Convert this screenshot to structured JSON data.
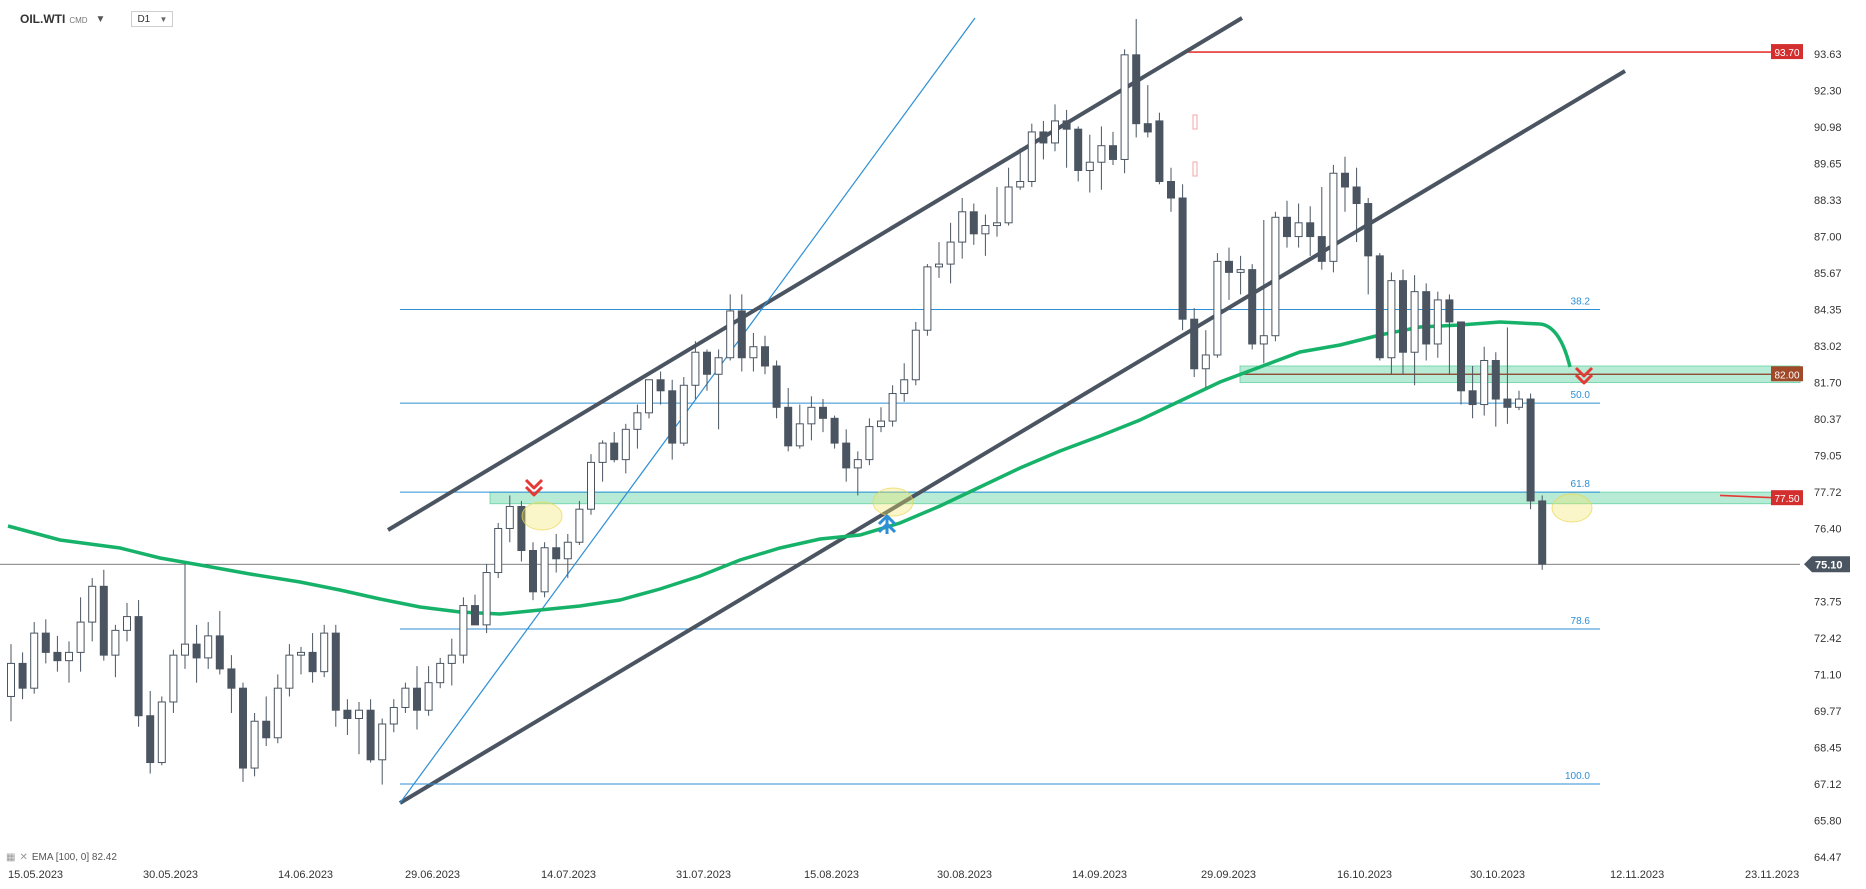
{
  "header": {
    "symbol": "OIL.WTI",
    "symbol_suffix": "CMD",
    "timeframe": "D1"
  },
  "legend": {
    "text": "EMA [100, 0] 82.42"
  },
  "colors": {
    "candle_up_fill": "#ffffff",
    "candle_down_fill": "#4a5561",
    "candle_outline": "#4a5561",
    "ema": "#17b26a",
    "channel": "#4a5561",
    "fib": "#2d8fd5",
    "zone": "#62d2a2",
    "resistance": "#e53935",
    "arrow_down": "#e53935",
    "arrow_up": "#2d8fd5",
    "current_price_tag": "#4a5561",
    "price_tag_red": "#d32f2f",
    "price_tag_brown": "#a14a2a"
  },
  "chart_data": {
    "type": "candlestick",
    "title": "",
    "ylim": [
      64.47,
      94.95
    ],
    "y_ticks": [
      "93.63",
      "92.30",
      "90.98",
      "89.65",
      "88.33",
      "87.00",
      "85.67",
      "84.35",
      "83.02",
      "81.70",
      "80.37",
      "79.05",
      "77.72",
      "76.40",
      "75.10",
      "73.75",
      "72.42",
      "71.10",
      "69.77",
      "68.45",
      "67.12",
      "65.80",
      "64.47"
    ],
    "x_labels": [
      "15.05.2023",
      "30.05.2023",
      "14.06.2023",
      "29.06.2023",
      "14.07.2023",
      "31.07.2023",
      "15.08.2023",
      "30.08.2023",
      "14.09.2023",
      "29.09.2023",
      "16.10.2023",
      "30.10.2023",
      "12.11.2023",
      "23.11.2023"
    ],
    "current_price": "75.10",
    "price_tags": [
      {
        "label": "93.70",
        "value": 93.7,
        "kind": "red"
      },
      {
        "label": "82.00",
        "value": 82.0,
        "kind": "brown"
      },
      {
        "label": "77.50",
        "value": 77.5,
        "kind": "red"
      }
    ],
    "fib_levels": [
      {
        "label": "38.2",
        "value": 84.35
      },
      {
        "label": "50.0",
        "value": 80.95
      },
      {
        "label": "61.8",
        "value": 77.72
      },
      {
        "label": "78.6",
        "value": 72.75
      },
      {
        "label": "100.0",
        "value": 67.12
      }
    ],
    "ema_label": "EMA [100, 0] 82.42",
    "candles": [
      {
        "date": "15.05.2023",
        "o": 70.3,
        "h": 72.2,
        "l": 69.4,
        "c": 71.5
      },
      {
        "date": "16.05.2023",
        "o": 71.5,
        "h": 71.9,
        "l": 70.2,
        "c": 70.6
      },
      {
        "date": "17.05.2023",
        "o": 70.6,
        "h": 73.0,
        "l": 70.4,
        "c": 72.6
      },
      {
        "date": "18.05.2023",
        "o": 72.6,
        "h": 73.1,
        "l": 71.5,
        "c": 71.9
      },
      {
        "date": "19.05.2023",
        "o": 71.9,
        "h": 72.5,
        "l": 71.2,
        "c": 71.6
      },
      {
        "date": "22.05.2023",
        "o": 71.6,
        "h": 72.3,
        "l": 70.8,
        "c": 71.9
      },
      {
        "date": "23.05.2023",
        "o": 71.9,
        "h": 73.9,
        "l": 71.2,
        "c": 73.0
      },
      {
        "date": "24.05.2023",
        "o": 73.0,
        "h": 74.6,
        "l": 72.3,
        "c": 74.3
      },
      {
        "date": "25.05.2023",
        "o": 74.3,
        "h": 74.9,
        "l": 71.6,
        "c": 71.8
      },
      {
        "date": "26.05.2023",
        "o": 71.8,
        "h": 72.9,
        "l": 71.0,
        "c": 72.7
      },
      {
        "date": "29.05.2023",
        "o": 72.7,
        "h": 73.7,
        "l": 72.3,
        "c": 73.2
      },
      {
        "date": "30.05.2023",
        "o": 73.2,
        "h": 73.8,
        "l": 69.2,
        "c": 69.6
      },
      {
        "date": "31.05.2023",
        "o": 69.6,
        "h": 70.5,
        "l": 67.5,
        "c": 67.9
      },
      {
        "date": "01.06.2023",
        "o": 67.9,
        "h": 70.3,
        "l": 67.8,
        "c": 70.1
      },
      {
        "date": "02.06.2023",
        "o": 70.1,
        "h": 72.0,
        "l": 69.7,
        "c": 71.8
      },
      {
        "date": "05.06.2023",
        "o": 71.8,
        "h": 75.1,
        "l": 71.3,
        "c": 72.2
      },
      {
        "date": "06.06.2023",
        "o": 72.2,
        "h": 72.9,
        "l": 70.8,
        "c": 71.7
      },
      {
        "date": "07.06.2023",
        "o": 71.7,
        "h": 73.0,
        "l": 71.3,
        "c": 72.5
      },
      {
        "date": "08.06.2023",
        "o": 72.5,
        "h": 73.4,
        "l": 71.1,
        "c": 71.3
      },
      {
        "date": "09.06.2023",
        "o": 71.3,
        "h": 71.8,
        "l": 69.7,
        "c": 70.6
      },
      {
        "date": "12.06.2023",
        "o": 70.6,
        "h": 70.8,
        "l": 67.2,
        "c": 67.7
      },
      {
        "date": "13.06.2023",
        "o": 67.7,
        "h": 69.7,
        "l": 67.4,
        "c": 69.4
      },
      {
        "date": "14.06.2023",
        "o": 69.4,
        "h": 70.3,
        "l": 68.5,
        "c": 68.8
      },
      {
        "date": "15.06.2023",
        "o": 68.8,
        "h": 71.1,
        "l": 68.6,
        "c": 70.6
      },
      {
        "date": "16.06.2023",
        "o": 70.6,
        "h": 72.2,
        "l": 70.3,
        "c": 71.8
      },
      {
        "date": "19.06.2023",
        "o": 71.8,
        "h": 72.1,
        "l": 71.1,
        "c": 71.9
      },
      {
        "date": "20.06.2023",
        "o": 71.9,
        "h": 72.6,
        "l": 70.8,
        "c": 71.2
      },
      {
        "date": "21.06.2023",
        "o": 71.2,
        "h": 72.9,
        "l": 71.0,
        "c": 72.6
      },
      {
        "date": "22.06.2023",
        "o": 72.6,
        "h": 72.9,
        "l": 69.2,
        "c": 69.8
      },
      {
        "date": "23.06.2023",
        "o": 69.8,
        "h": 70.2,
        "l": 68.9,
        "c": 69.5
      },
      {
        "date": "26.06.2023",
        "o": 69.5,
        "h": 70.1,
        "l": 68.2,
        "c": 69.8
      },
      {
        "date": "27.06.2023",
        "o": 69.8,
        "h": 70.2,
        "l": 67.9,
        "c": 68.0
      },
      {
        "date": "28.06.2023",
        "o": 68.0,
        "h": 69.5,
        "l": 67.1,
        "c": 69.3
      },
      {
        "date": "29.06.2023",
        "o": 69.3,
        "h": 70.2,
        "l": 69.0,
        "c": 69.9
      },
      {
        "date": "30.06.2023",
        "o": 69.9,
        "h": 70.8,
        "l": 69.7,
        "c": 70.6
      },
      {
        "date": "03.07.2023",
        "o": 70.6,
        "h": 71.4,
        "l": 69.1,
        "c": 69.8
      },
      {
        "date": "04.07.2023",
        "o": 69.8,
        "h": 71.4,
        "l": 69.6,
        "c": 70.8
      },
      {
        "date": "05.07.2023",
        "o": 70.8,
        "h": 71.7,
        "l": 70.6,
        "c": 71.5
      },
      {
        "date": "06.07.2023",
        "o": 71.5,
        "h": 72.4,
        "l": 70.7,
        "c": 71.8
      },
      {
        "date": "07.07.2023",
        "o": 71.8,
        "h": 73.9,
        "l": 71.5,
        "c": 73.6
      },
      {
        "date": "10.07.2023",
        "o": 73.6,
        "h": 74.0,
        "l": 72.9,
        "c": 72.9
      },
      {
        "date": "11.07.2023",
        "o": 72.9,
        "h": 75.1,
        "l": 72.6,
        "c": 74.8
      },
      {
        "date": "12.07.2023",
        "o": 74.8,
        "h": 76.6,
        "l": 74.6,
        "c": 76.4
      },
      {
        "date": "13.07.2023",
        "o": 76.4,
        "h": 77.6,
        "l": 75.9,
        "c": 77.2
      },
      {
        "date": "14.07.2023",
        "o": 77.2,
        "h": 77.4,
        "l": 75.2,
        "c": 75.6
      },
      {
        "date": "17.07.2023",
        "o": 75.6,
        "h": 75.9,
        "l": 73.8,
        "c": 74.1
      },
      {
        "date": "18.07.2023",
        "o": 74.1,
        "h": 75.9,
        "l": 73.9,
        "c": 75.7
      },
      {
        "date": "19.07.2023",
        "o": 75.7,
        "h": 76.2,
        "l": 74.8,
        "c": 75.3
      },
      {
        "date": "20.07.2023",
        "o": 75.3,
        "h": 76.2,
        "l": 74.6,
        "c": 75.9
      },
      {
        "date": "21.07.2023",
        "o": 75.9,
        "h": 77.4,
        "l": 75.8,
        "c": 77.1
      },
      {
        "date": "24.07.2023",
        "o": 77.1,
        "h": 79.1,
        "l": 76.9,
        "c": 78.8
      },
      {
        "date": "25.07.2023",
        "o": 78.8,
        "h": 79.6,
        "l": 78.1,
        "c": 79.5
      },
      {
        "date": "26.07.2023",
        "o": 79.5,
        "h": 79.9,
        "l": 78.8,
        "c": 78.9
      },
      {
        "date": "27.07.2023",
        "o": 78.9,
        "h": 80.2,
        "l": 78.4,
        "c": 80.0
      },
      {
        "date": "28.07.2023",
        "o": 80.0,
        "h": 80.9,
        "l": 79.3,
        "c": 80.6
      },
      {
        "date": "31.07.2023",
        "o": 80.6,
        "h": 81.8,
        "l": 80.4,
        "c": 81.8
      },
      {
        "date": "01.08.2023",
        "o": 81.8,
        "h": 82.1,
        "l": 80.9,
        "c": 81.4
      },
      {
        "date": "02.08.2023",
        "o": 81.4,
        "h": 81.8,
        "l": 78.9,
        "c": 79.5
      },
      {
        "date": "03.08.2023",
        "o": 79.5,
        "h": 81.9,
        "l": 79.4,
        "c": 81.6
      },
      {
        "date": "04.08.2023",
        "o": 81.6,
        "h": 83.2,
        "l": 81.1,
        "c": 82.8
      },
      {
        "date": "07.08.2023",
        "o": 82.8,
        "h": 82.9,
        "l": 81.4,
        "c": 82.0
      },
      {
        "date": "08.08.2023",
        "o": 82.0,
        "h": 82.9,
        "l": 80.0,
        "c": 82.6
      },
      {
        "date": "09.08.2023",
        "o": 82.6,
        "h": 84.9,
        "l": 82.5,
        "c": 84.3
      },
      {
        "date": "10.08.2023",
        "o": 84.3,
        "h": 84.9,
        "l": 82.1,
        "c": 82.6
      },
      {
        "date": "11.08.2023",
        "o": 82.6,
        "h": 83.5,
        "l": 82.1,
        "c": 83.0
      },
      {
        "date": "14.08.2023",
        "o": 83.0,
        "h": 83.4,
        "l": 82.0,
        "c": 82.3
      },
      {
        "date": "15.08.2023",
        "o": 82.3,
        "h": 82.5,
        "l": 80.4,
        "c": 80.8
      },
      {
        "date": "16.08.2023",
        "o": 80.8,
        "h": 81.5,
        "l": 79.2,
        "c": 79.4
      },
      {
        "date": "17.08.2023",
        "o": 79.4,
        "h": 80.9,
        "l": 79.3,
        "c": 80.2
      },
      {
        "date": "18.08.2023",
        "o": 80.2,
        "h": 81.2,
        "l": 79.6,
        "c": 80.8
      },
      {
        "date": "21.08.2023",
        "o": 80.8,
        "h": 81.1,
        "l": 79.9,
        "c": 80.4
      },
      {
        "date": "22.08.2023",
        "o": 80.4,
        "h": 80.5,
        "l": 79.3,
        "c": 79.5
      },
      {
        "date": "23.08.2023",
        "o": 79.5,
        "h": 80.0,
        "l": 78.1,
        "c": 78.6
      },
      {
        "date": "24.08.2023",
        "o": 78.6,
        "h": 79.2,
        "l": 77.6,
        "c": 78.9
      },
      {
        "date": "25.08.2023",
        "o": 78.9,
        "h": 80.4,
        "l": 78.7,
        "c": 80.1
      },
      {
        "date": "28.08.2023",
        "o": 80.1,
        "h": 80.8,
        "l": 79.9,
        "c": 80.3
      },
      {
        "date": "29.08.2023",
        "o": 80.3,
        "h": 81.6,
        "l": 80.1,
        "c": 81.3
      },
      {
        "date": "30.08.2023",
        "o": 81.3,
        "h": 82.4,
        "l": 81.0,
        "c": 81.8
      },
      {
        "date": "31.08.2023",
        "o": 81.8,
        "h": 83.9,
        "l": 81.6,
        "c": 83.6
      },
      {
        "date": "01.09.2023",
        "o": 83.6,
        "h": 86.0,
        "l": 83.4,
        "c": 85.9
      },
      {
        "date": "05.09.2023",
        "o": 85.9,
        "h": 86.8,
        "l": 85.5,
        "c": 86.0
      },
      {
        "date": "06.09.2023",
        "o": 86.0,
        "h": 87.5,
        "l": 85.3,
        "c": 86.8
      },
      {
        "date": "07.09.2023",
        "o": 86.8,
        "h": 88.4,
        "l": 86.2,
        "c": 87.9
      },
      {
        "date": "08.09.2023",
        "o": 87.9,
        "h": 88.2,
        "l": 86.7,
        "c": 87.1
      },
      {
        "date": "11.09.2023",
        "o": 87.1,
        "h": 87.8,
        "l": 86.3,
        "c": 87.4
      },
      {
        "date": "12.09.2023",
        "o": 87.4,
        "h": 88.8,
        "l": 87.0,
        "c": 87.5
      },
      {
        "date": "13.09.2023",
        "o": 87.5,
        "h": 89.5,
        "l": 87.4,
        "c": 88.8
      },
      {
        "date": "14.09.2023",
        "o": 88.8,
        "h": 90.2,
        "l": 88.7,
        "c": 89.0
      },
      {
        "date": "15.09.2023",
        "o": 89.0,
        "h": 91.1,
        "l": 88.8,
        "c": 90.8
      },
      {
        "date": "18.09.2023",
        "o": 90.8,
        "h": 91.2,
        "l": 89.8,
        "c": 90.4
      },
      {
        "date": "19.09.2023",
        "o": 90.4,
        "h": 91.8,
        "l": 90.1,
        "c": 91.2
      },
      {
        "date": "20.09.2023",
        "o": 91.2,
        "h": 91.6,
        "l": 89.5,
        "c": 90.9
      },
      {
        "date": "21.09.2023",
        "o": 90.9,
        "h": 91.0,
        "l": 89.0,
        "c": 89.4
      },
      {
        "date": "22.09.2023",
        "o": 89.4,
        "h": 90.7,
        "l": 88.6,
        "c": 89.7
      },
      {
        "date": "25.09.2023",
        "o": 89.7,
        "h": 91.0,
        "l": 88.7,
        "c": 90.3
      },
      {
        "date": "26.09.2023",
        "o": 90.3,
        "h": 90.8,
        "l": 89.6,
        "c": 89.8
      },
      {
        "date": "27.09.2023",
        "o": 89.8,
        "h": 93.8,
        "l": 89.3,
        "c": 93.6
      },
      {
        "date": "28.09.2023",
        "o": 93.6,
        "h": 94.9,
        "l": 90.6,
        "c": 91.1
      },
      {
        "date": "29.09.2023",
        "o": 91.1,
        "h": 92.5,
        "l": 90.6,
        "c": 90.8
      },
      {
        "date": "02.10.2023",
        "o": 91.2,
        "h": 91.5,
        "l": 88.9,
        "c": 89.0
      },
      {
        "date": "03.10.2023",
        "o": 89.0,
        "h": 89.5,
        "l": 87.9,
        "c": 88.4
      },
      {
        "date": "04.10.2023",
        "o": 88.4,
        "h": 88.9,
        "l": 83.6,
        "c": 84.0
      },
      {
        "date": "05.10.2023",
        "o": 84.0,
        "h": 84.4,
        "l": 81.9,
        "c": 82.2
      },
      {
        "date": "06.10.2023",
        "o": 82.2,
        "h": 83.6,
        "l": 81.5,
        "c": 82.7
      },
      {
        "date": "09.10.2023",
        "o": 82.7,
        "h": 86.4,
        "l": 82.6,
        "c": 86.1
      },
      {
        "date": "10.10.2023",
        "o": 86.1,
        "h": 86.6,
        "l": 84.7,
        "c": 85.7
      },
      {
        "date": "11.10.2023",
        "o": 85.7,
        "h": 86.3,
        "l": 84.9,
        "c": 85.8
      },
      {
        "date": "12.10.2023",
        "o": 85.8,
        "h": 86.0,
        "l": 82.9,
        "c": 83.1
      },
      {
        "date": "13.10.2023",
        "o": 83.1,
        "h": 87.6,
        "l": 82.4,
        "c": 83.4
      },
      {
        "date": "16.10.2023",
        "o": 83.4,
        "h": 87.9,
        "l": 83.2,
        "c": 87.7
      },
      {
        "date": "17.10.2023",
        "o": 87.7,
        "h": 88.3,
        "l": 86.6,
        "c": 87.0
      },
      {
        "date": "18.10.2023",
        "o": 87.0,
        "h": 88.2,
        "l": 86.6,
        "c": 87.5
      },
      {
        "date": "19.10.2023",
        "o": 87.5,
        "h": 88.1,
        "l": 86.3,
        "c": 87.0
      },
      {
        "date": "20.10.2023",
        "o": 87.0,
        "h": 88.8,
        "l": 85.8,
        "c": 86.1
      },
      {
        "date": "23.10.2023",
        "o": 86.1,
        "h": 89.6,
        "l": 85.7,
        "c": 89.3
      },
      {
        "date": "24.10.2023",
        "o": 89.3,
        "h": 89.9,
        "l": 87.9,
        "c": 88.8
      },
      {
        "date": "25.10.2023",
        "o": 88.8,
        "h": 89.5,
        "l": 86.8,
        "c": 88.2
      },
      {
        "date": "26.10.2023",
        "o": 88.2,
        "h": 88.4,
        "l": 84.9,
        "c": 86.3
      },
      {
        "date": "27.10.2023",
        "o": 86.3,
        "h": 86.4,
        "l": 82.5,
        "c": 82.6
      },
      {
        "date": "30.10.2023",
        "o": 82.6,
        "h": 85.7,
        "l": 82.0,
        "c": 85.4
      },
      {
        "date": "31.10.2023",
        "o": 85.4,
        "h": 85.8,
        "l": 82.0,
        "c": 82.8
      },
      {
        "date": "01.11.2023",
        "o": 82.8,
        "h": 85.6,
        "l": 81.6,
        "c": 85.0
      },
      {
        "date": "02.11.2023",
        "o": 85.0,
        "h": 85.3,
        "l": 82.5,
        "c": 83.1
      },
      {
        "date": "03.11.2023",
        "o": 83.1,
        "h": 85.0,
        "l": 82.6,
        "c": 84.7
      },
      {
        "date": "06.11.2023",
        "o": 84.7,
        "h": 84.9,
        "l": 82.0,
        "c": 83.9
      },
      {
        "date": "07.11.2023",
        "o": 83.9,
        "h": 83.9,
        "l": 80.9,
        "c": 81.4
      },
      {
        "date": "08.11.2023",
        "o": 81.4,
        "h": 82.3,
        "l": 80.4,
        "c": 80.9
      },
      {
        "date": "09.11.2023",
        "o": 80.9,
        "h": 83.0,
        "l": 80.5,
        "c": 82.5
      },
      {
        "date": "10.11.2023",
        "o": 82.5,
        "h": 82.8,
        "l": 80.1,
        "c": 81.1
      },
      {
        "date": "13.11.2023",
        "o": 81.1,
        "h": 83.7,
        "l": 80.2,
        "c": 80.8
      },
      {
        "date": "14.11.2023",
        "o": 80.8,
        "h": 81.4,
        "l": 80.7,
        "c": 81.1
      },
      {
        "date": "15.11.2023",
        "o": 81.1,
        "h": 81.3,
        "l": 77.1,
        "c": 77.4
      },
      {
        "date": "16.11.2023",
        "o": 77.4,
        "h": 77.6,
        "l": 74.9,
        "c": 75.1
      }
    ]
  }
}
